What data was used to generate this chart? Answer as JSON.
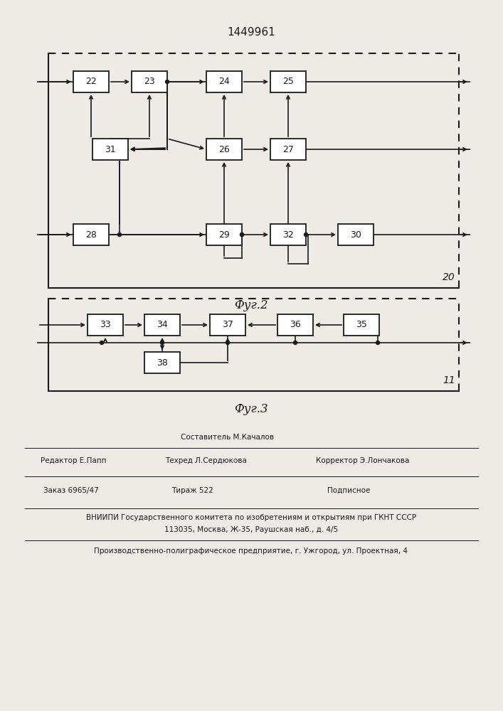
{
  "title": "1449961",
  "fig2_label": "20",
  "fig2_caption": "Фуг.2",
  "fig3_label": "11",
  "fig3_caption": "Фуг.3",
  "footer_line1_center": "Составитель М.Качалов",
  "footer_line2_col1": "Редактор Е.Папп",
  "footer_line2_col2": "Техред Л.Сердюкова",
  "footer_line2_col3": "Корректор Э.Лончакова",
  "footer_line3_col1": "Заказ 6965/47",
  "footer_line3_col2": "Тираж 522",
  "footer_line3_col3": "Подписное",
  "footer_line4": "ВНИИПИ Государственного комитета по изобретениям и открытиям при ГКНТ СССР",
  "footer_line5": "113035, Москва, Ж-35, Раушская наб., д. 4/5",
  "footer_line6": "Производственно-полиграфическое предприятие, г. Ужгород, ул. Проектная, 4",
  "bg_color": "#eeebe6",
  "box_color": "#ffffff",
  "line_color": "#1a1a1a"
}
